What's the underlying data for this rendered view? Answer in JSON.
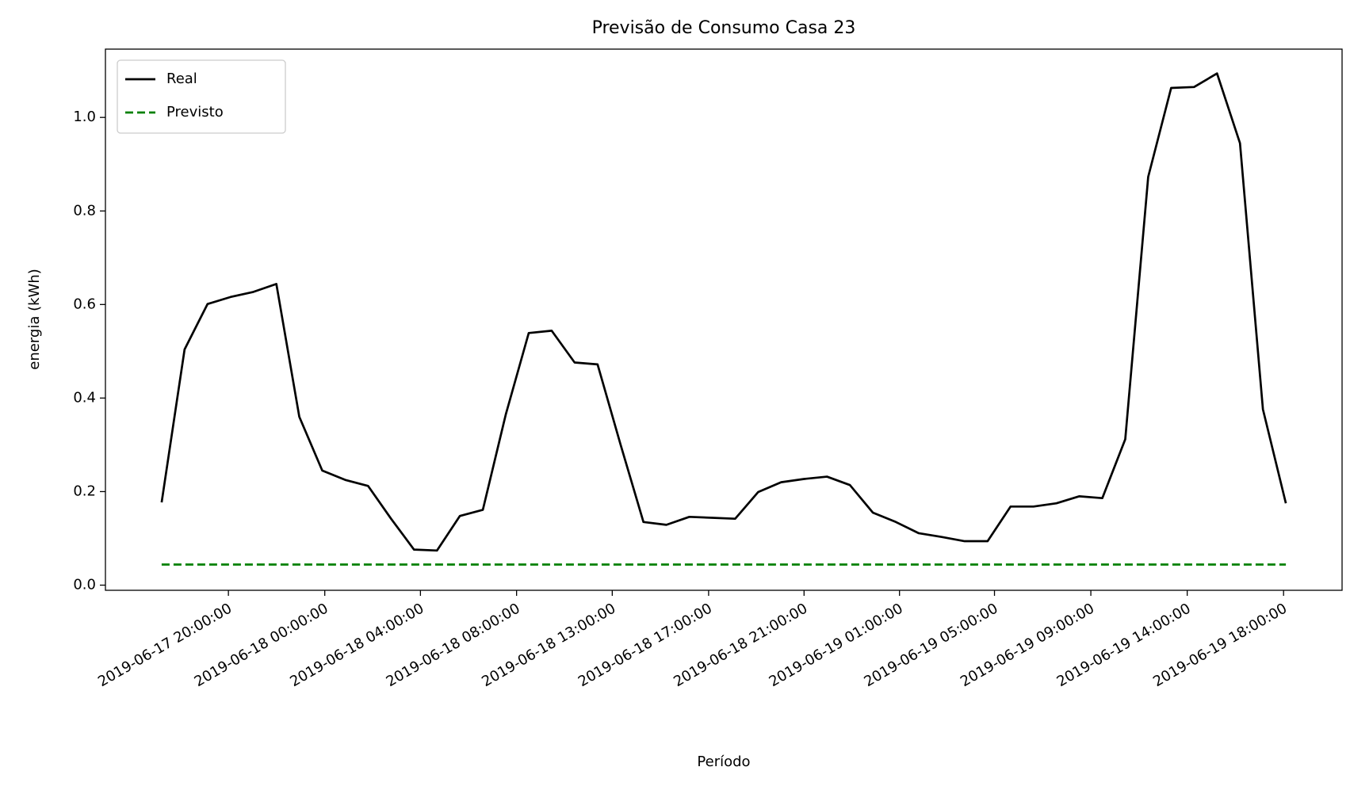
{
  "chart_data": {
    "type": "line",
    "title": "Previsão de Consumo Casa 23",
    "x_label": "Período",
    "y_label": "energia (kWh)",
    "xlim": [
      -2.45,
      51.45
    ],
    "xticks": [
      {
        "value": 2.91,
        "label": "2019-06-17 20:00:00"
      },
      {
        "value": 7.11,
        "label": "2019-06-18 00:00:00"
      },
      {
        "value": 11.28,
        "label": "2019-06-18 04:00:00"
      },
      {
        "value": 15.47,
        "label": "2019-06-18 08:00:00"
      },
      {
        "value": 19.64,
        "label": "2019-06-18 13:00:00"
      },
      {
        "value": 23.84,
        "label": "2019-06-18 17:00:00"
      },
      {
        "value": 28.0,
        "label": "2019-06-18 21:00:00"
      },
      {
        "value": 32.16,
        "label": "2019-06-19 01:00:00"
      },
      {
        "value": 36.3,
        "label": "2019-06-19 05:00:00"
      },
      {
        "value": 40.5,
        "label": "2019-06-19 09:00:00"
      },
      {
        "value": 44.7,
        "label": "2019-06-19 14:00:00"
      },
      {
        "value": 48.9,
        "label": "2019-06-19 18:00:00"
      }
    ],
    "ylim": [
      -0.011,
      1.146
    ],
    "yticks": [
      {
        "value": 0,
        "label": "0.0"
      },
      0.2,
      0.4,
      0.6,
      0.8,
      {
        "value": 1,
        "label": "1.0"
      }
    ],
    "grid": false,
    "legend": "upper left",
    "series": [
      {
        "name": "Real",
        "color": "#000000",
        "dash": "solid",
        "values": [
          0.177,
          0.504,
          0.601,
          0.616,
          0.627,
          0.644,
          0.36,
          0.245,
          0.225,
          0.212,
          0.142,
          0.076,
          0.074,
          0.148,
          0.161,
          0.365,
          0.539,
          0.544,
          0.476,
          0.472,
          0.301,
          0.135,
          0.129,
          0.146,
          0.144,
          0.142,
          0.199,
          0.22,
          0.227,
          0.232,
          0.214,
          0.155,
          0.135,
          0.111,
          0.103,
          0.094,
          0.094,
          0.168,
          0.168,
          0.175,
          0.19,
          0.186,
          0.312,
          0.873,
          1.063,
          1.065,
          1.094,
          0.945,
          0.376,
          0.175
        ]
      },
      {
        "name": "Previsto",
        "color": "#008000",
        "dash": "dashed",
        "values": [
          0.044,
          0.044,
          0.044,
          0.044,
          0.044,
          0.044,
          0.044,
          0.044,
          0.044,
          0.044,
          0.044,
          0.044,
          0.044,
          0.044,
          0.044,
          0.044,
          0.044,
          0.044,
          0.044,
          0.044,
          0.044,
          0.044,
          0.044,
          0.044,
          0.044,
          0.044,
          0.044,
          0.044,
          0.044,
          0.044,
          0.044,
          0.044,
          0.044,
          0.044,
          0.044,
          0.044,
          0.044,
          0.044,
          0.044,
          0.044,
          0.044,
          0.044,
          0.044,
          0.044,
          0.044,
          0.044,
          0.044,
          0.044,
          0.044,
          0.044
        ]
      }
    ]
  }
}
